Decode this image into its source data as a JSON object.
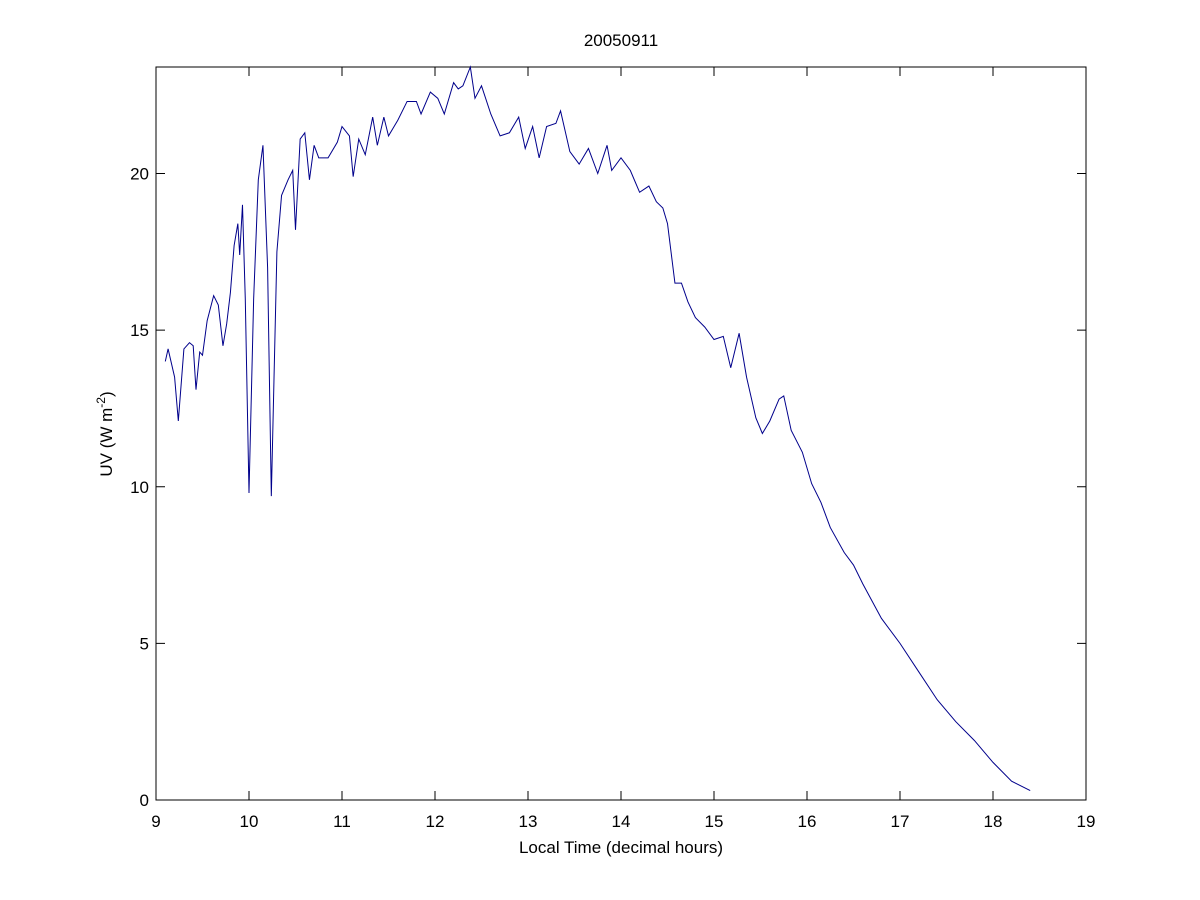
{
  "chart_data": {
    "type": "line",
    "title": "20050911",
    "xlabel": "Local Time (decimal hours)",
    "ylabel": {
      "text": "UV (W m",
      "superscript": "-2",
      "suffix": ")"
    },
    "xlim": [
      9,
      19
    ],
    "xticks": [
      9,
      10,
      11,
      12,
      13,
      14,
      15,
      16,
      17,
      18,
      19
    ],
    "ylim": [
      0,
      23.4
    ],
    "yticks": [
      0,
      5,
      10,
      15,
      20
    ],
    "grid": false,
    "series": [
      {
        "color": "#00008b",
        "x": [
          9.1,
          9.13,
          9.2,
          9.24,
          9.3,
          9.36,
          9.4,
          9.43,
          9.47,
          9.5,
          9.55,
          9.62,
          9.67,
          9.72,
          9.76,
          9.8,
          9.84,
          9.88,
          9.9,
          9.93,
          9.96,
          10.0,
          10.05,
          10.1,
          10.15,
          10.2,
          10.24,
          10.3,
          10.35,
          10.42,
          10.47,
          10.5,
          10.55,
          10.6,
          10.65,
          10.7,
          10.75,
          10.85,
          10.95,
          11.0,
          11.08,
          11.12,
          11.18,
          11.25,
          11.33,
          11.38,
          11.45,
          11.5,
          11.6,
          11.7,
          11.8,
          11.85,
          11.95,
          12.03,
          12.1,
          12.2,
          12.25,
          12.3,
          12.38,
          12.43,
          12.5,
          12.6,
          12.7,
          12.8,
          12.9,
          12.97,
          13.05,
          13.12,
          13.2,
          13.3,
          13.35,
          13.45,
          13.55,
          13.65,
          13.75,
          13.85,
          13.9,
          14.0,
          14.1,
          14.2,
          14.3,
          14.38,
          14.45,
          14.5,
          14.58,
          14.65,
          14.72,
          14.8,
          14.9,
          15.0,
          15.1,
          15.18,
          15.27,
          15.35,
          15.45,
          15.52,
          15.6,
          15.7,
          15.75,
          15.83,
          15.95,
          16.05,
          16.15,
          16.25,
          16.4,
          16.5,
          16.6,
          16.8,
          17.0,
          17.2,
          17.4,
          17.6,
          17.8,
          18.0,
          18.2,
          18.4
        ],
        "values": [
          14.0,
          14.4,
          13.5,
          12.1,
          14.4,
          14.6,
          14.5,
          13.1,
          14.3,
          14.2,
          15.3,
          16.1,
          15.8,
          14.5,
          15.2,
          16.2,
          17.7,
          18.4,
          17.4,
          19.0,
          16.0,
          9.8,
          16.0,
          19.8,
          20.9,
          17.0,
          9.7,
          17.5,
          19.3,
          19.8,
          20.1,
          18.2,
          21.1,
          21.3,
          19.8,
          20.9,
          20.5,
          20.5,
          21.0,
          21.5,
          21.2,
          19.9,
          21.1,
          20.6,
          21.8,
          20.9,
          21.8,
          21.2,
          21.7,
          22.3,
          22.3,
          21.9,
          22.6,
          22.4,
          21.9,
          22.9,
          22.7,
          22.8,
          23.4,
          22.4,
          22.8,
          21.9,
          21.2,
          21.3,
          21.8,
          20.8,
          21.5,
          20.5,
          21.5,
          21.6,
          22.0,
          20.7,
          20.3,
          20.8,
          20.0,
          20.9,
          20.1,
          20.5,
          20.1,
          19.4,
          19.6,
          19.1,
          18.9,
          18.4,
          16.5,
          16.5,
          15.9,
          15.4,
          15.1,
          14.7,
          14.8,
          13.8,
          14.9,
          13.5,
          12.2,
          11.7,
          12.1,
          12.8,
          12.9,
          11.8,
          11.1,
          10.1,
          9.5,
          8.7,
          7.9,
          7.5,
          6.9,
          5.8,
          5.0,
          4.1,
          3.2,
          2.5,
          1.9,
          1.2,
          0.6,
          0.3
        ]
      }
    ]
  }
}
